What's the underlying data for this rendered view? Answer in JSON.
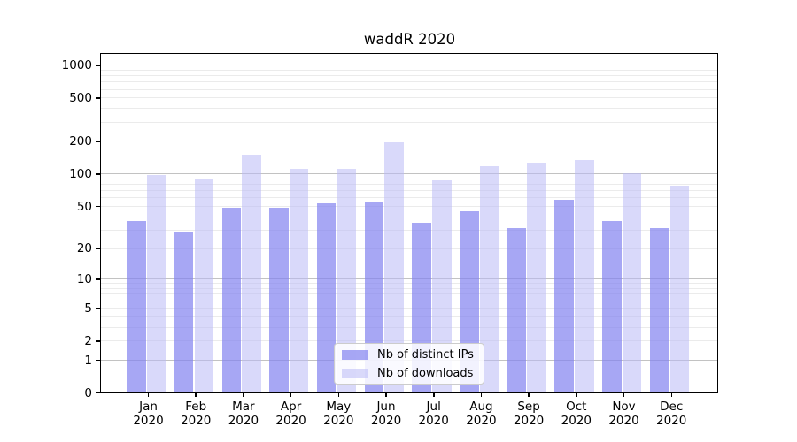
{
  "chart_data": {
    "type": "bar",
    "title": "waddR 2020",
    "xlabel": "",
    "ylabel": "",
    "yscale": "log1p",
    "ylim": [
      0,
      1255
    ],
    "yticks": [
      0,
      1,
      2,
      5,
      10,
      20,
      50,
      100,
      200,
      500,
      1000
    ],
    "categories": [
      {
        "month": "Jan",
        "year": "2020"
      },
      {
        "month": "Feb",
        "year": "2020"
      },
      {
        "month": "Mar",
        "year": "2020"
      },
      {
        "month": "Apr",
        "year": "2020"
      },
      {
        "month": "May",
        "year": "2020"
      },
      {
        "month": "Jun",
        "year": "2020"
      },
      {
        "month": "Jul",
        "year": "2020"
      },
      {
        "month": "Aug",
        "year": "2020"
      },
      {
        "month": "Sep",
        "year": "2020"
      },
      {
        "month": "Oct",
        "year": "2020"
      },
      {
        "month": "Nov",
        "year": "2020"
      },
      {
        "month": "Dec",
        "year": "2020"
      }
    ],
    "series": [
      {
        "name": "Nb of distinct IPs",
        "color": "rgba(130,130,240,0.70)",
        "solid_color": "#a7a7f4",
        "values": [
          36,
          28,
          48,
          48,
          53,
          54,
          35,
          45,
          31,
          57,
          36,
          31
        ]
      },
      {
        "name": "Nb of downloads",
        "color": "rgba(185,185,246,0.55)",
        "solid_color": "#d8d8fa",
        "values": [
          97,
          89,
          150,
          111,
          111,
          195,
          87,
          117,
          125,
          133,
          100,
          77
        ]
      }
    ],
    "grid": {
      "orientation": "horizontal",
      "major_at": [
        1,
        10,
        100,
        1000
      ],
      "major_color": "#c2c2c2",
      "minor_color": "#ebebeb"
    },
    "legend": {
      "position": "lower-center-inside",
      "background": "rgba(255,255,255,0.85)",
      "border_color": "#cccccc"
    },
    "axis_color": "#000000",
    "background": "#ffffff"
  }
}
